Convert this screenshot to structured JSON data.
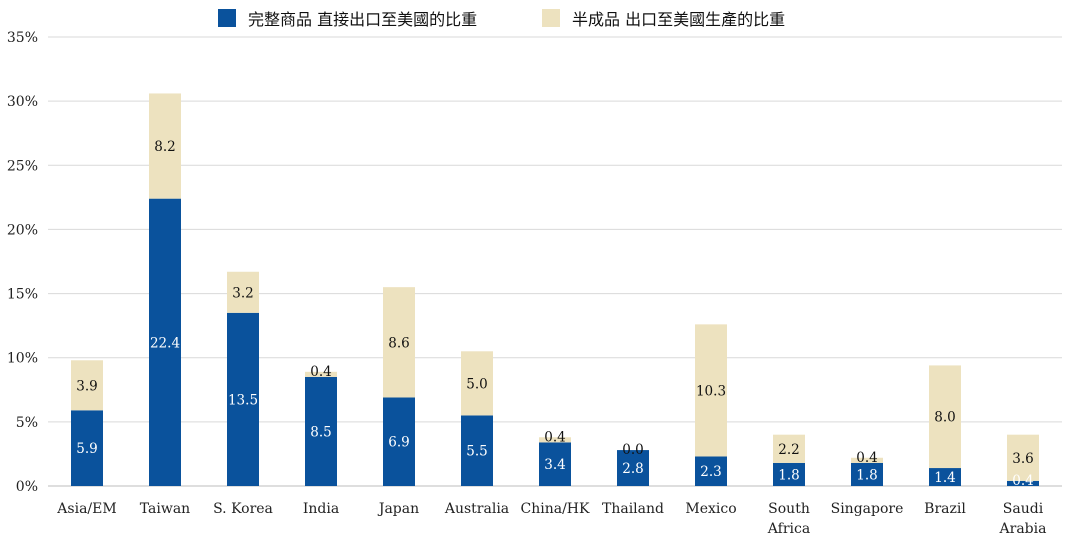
{
  "chart_data": {
    "type": "bar",
    "stacked": true,
    "categories": [
      [
        "Asia/EM"
      ],
      [
        "Taiwan"
      ],
      [
        "S. Korea"
      ],
      [
        "India"
      ],
      [
        "Japan"
      ],
      [
        "Australia"
      ],
      [
        "China/HK"
      ],
      [
        "Thailand"
      ],
      [
        "Mexico"
      ],
      [
        "South",
        "Africa"
      ],
      [
        "Singapore"
      ],
      [
        "Brazil"
      ],
      [
        "Saudi",
        "Arabia"
      ]
    ],
    "series": [
      {
        "name": "完整商品 直接出口至美國的比重",
        "color": "#0a529c",
        "label_color": "#ffffff",
        "values": [
          5.9,
          22.4,
          13.5,
          8.5,
          6.9,
          5.5,
          3.4,
          2.8,
          2.3,
          1.8,
          1.8,
          1.4,
          0.4
        ]
      },
      {
        "name": "半成品 出口至美國生產的比重",
        "color": "#ede2bf",
        "label_color": "#111111",
        "values": [
          3.9,
          8.2,
          3.2,
          0.4,
          8.6,
          5.0,
          0.4,
          0.0,
          10.3,
          2.2,
          0.4,
          8.0,
          3.6
        ]
      }
    ],
    "y_ticks": [
      "0%",
      "5%",
      "10%",
      "15%",
      "20%",
      "25%",
      "30%",
      "35%"
    ],
    "ylim": [
      0,
      35
    ],
    "grid": true,
    "legend_position": "top"
  }
}
